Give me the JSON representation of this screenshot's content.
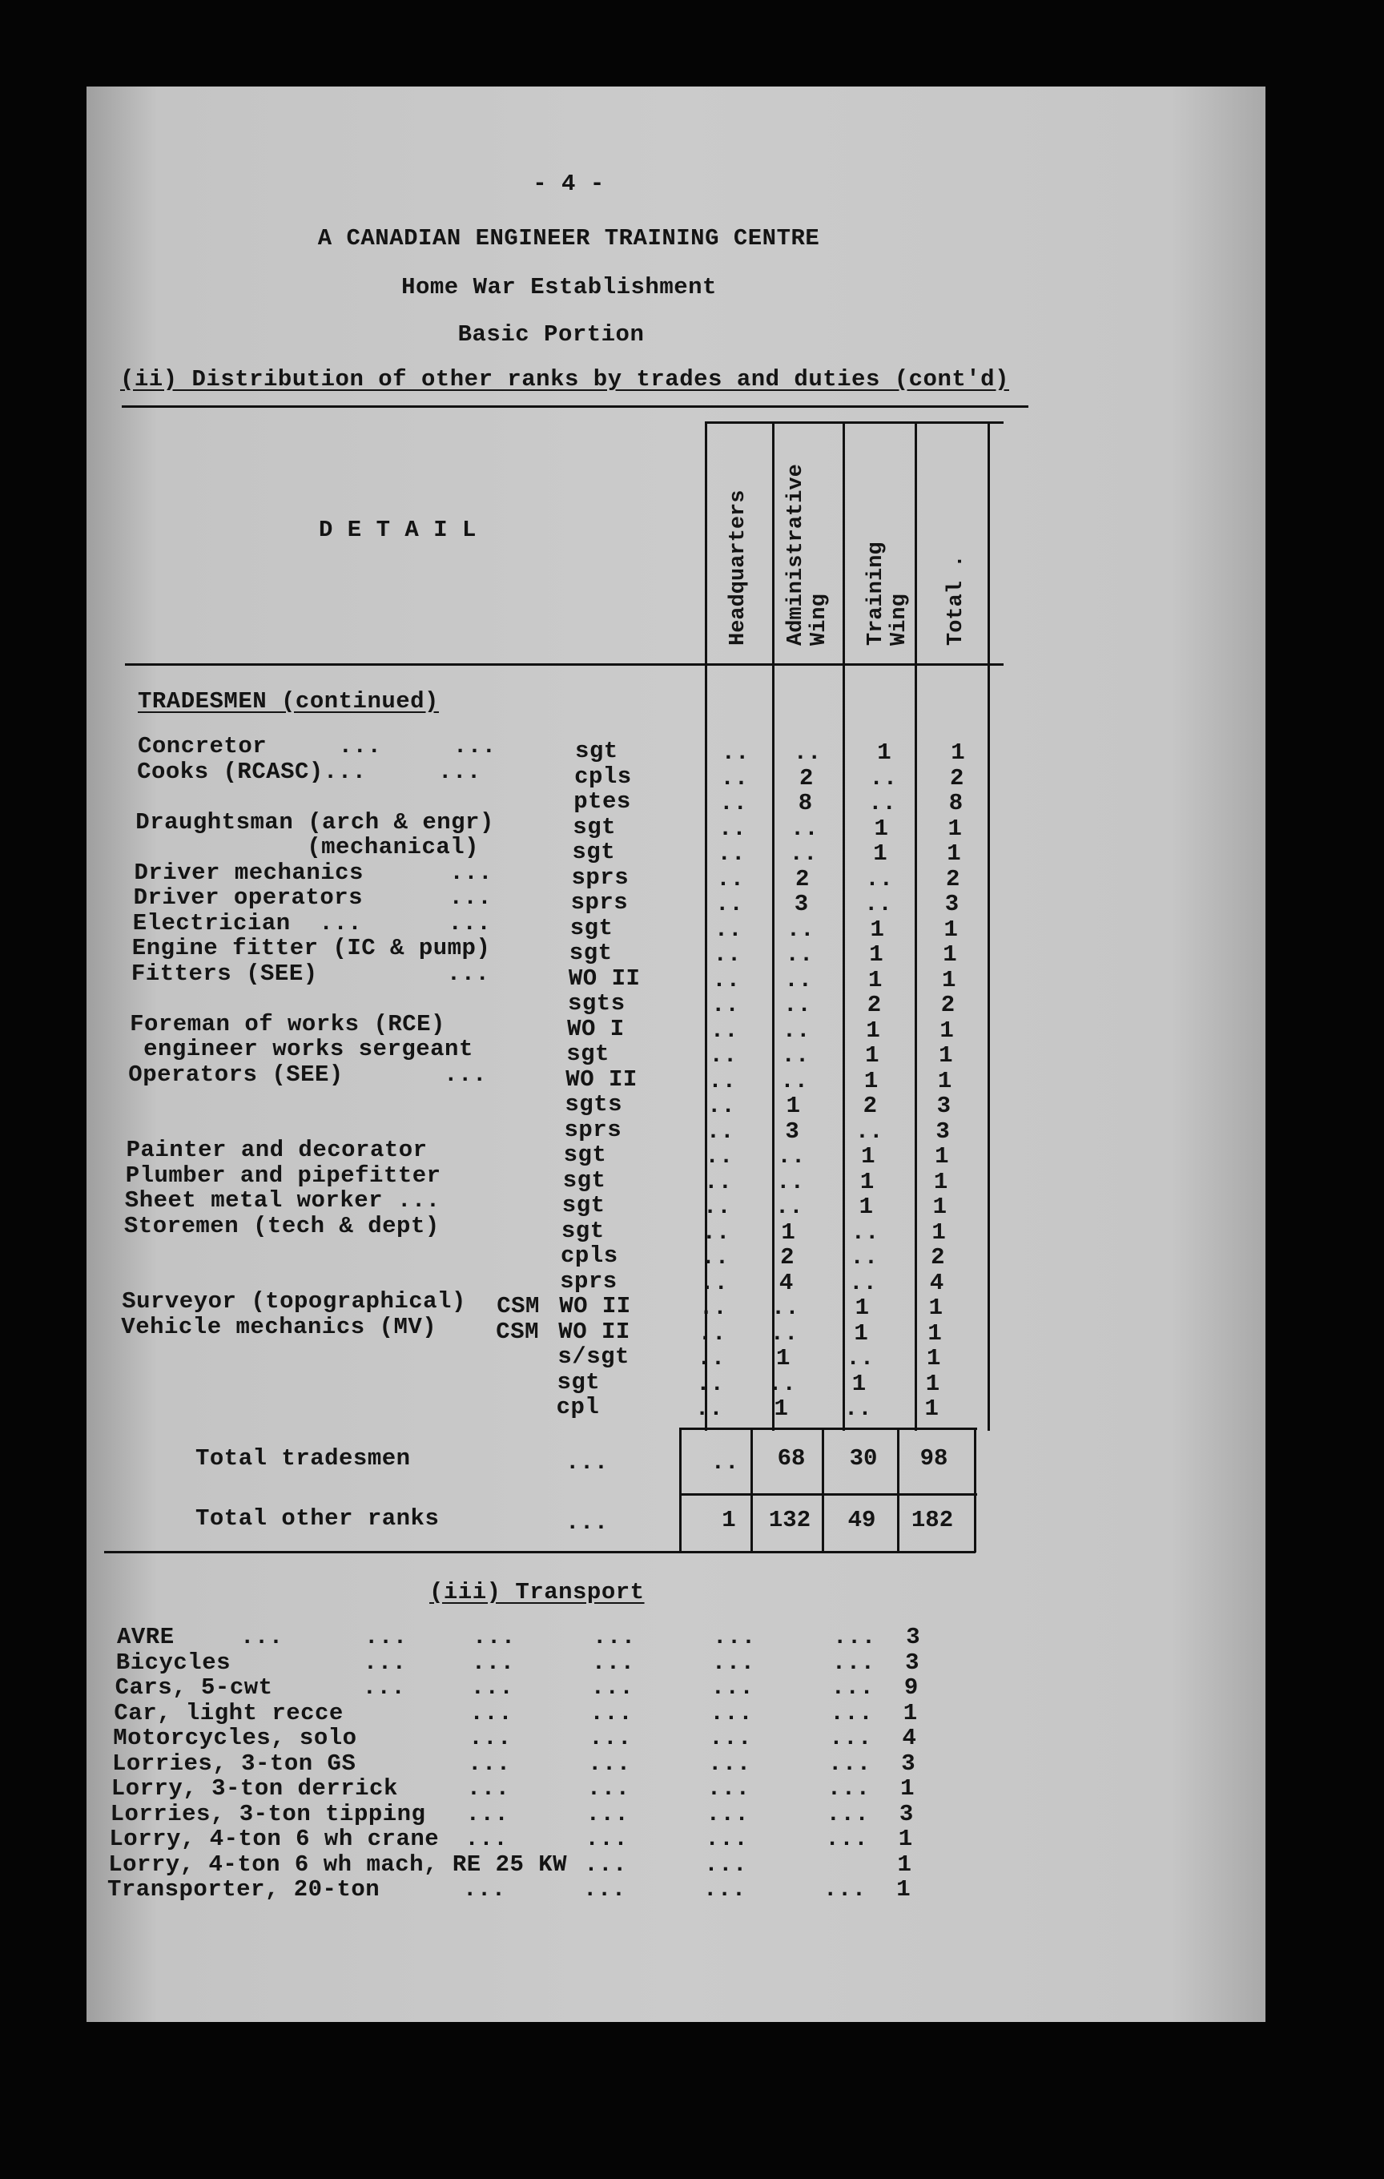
{
  "page_number": "- 4 -",
  "title": "A CANADIAN ENGINEER TRAINING CENTRE",
  "subtitle": "Home War Establishment",
  "portion": "Basic Portion",
  "section_ii": "(ii) Distribution of other ranks by trades and duties (cont'd)",
  "table": {
    "detail_header": "D E T A I L",
    "columns": [
      "Headquarters",
      "Administrative Wing",
      "Training Wing",
      "Total ."
    ],
    "group_heading": "TRADESMEN (continued)",
    "rows": [
      {
        "detail": "Concretor     ...     ...",
        "csm": "",
        "rank": "sgt",
        "hq": "..",
        "adm": "..",
        "trg": "1",
        "total": "1"
      },
      {
        "detail": "Cooks (RCASC)...     ...",
        "csm": "",
        "rank": "cpls",
        "hq": "..",
        "adm": "2",
        "trg": "..",
        "total": "2"
      },
      {
        "detail": "",
        "csm": "",
        "rank": "ptes",
        "hq": "..",
        "adm": "8",
        "trg": "..",
        "total": "8"
      },
      {
        "detail": "Draughtsman (arch & engr)",
        "csm": "",
        "rank": "sgt",
        "hq": "..",
        "adm": "..",
        "trg": "1",
        "total": "1"
      },
      {
        "detail": "            (mechanical)",
        "csm": "",
        "rank": "sgt",
        "hq": "..",
        "adm": "..",
        "trg": "1",
        "total": "1"
      },
      {
        "detail": "Driver mechanics      ...",
        "csm": "",
        "rank": "sprs",
        "hq": "..",
        "adm": "2",
        "trg": "..",
        "total": "2"
      },
      {
        "detail": "Driver operators      ...",
        "csm": "",
        "rank": "sprs",
        "hq": "..",
        "adm": "3",
        "trg": "..",
        "total": "3"
      },
      {
        "detail": "Electrician  ...      ...",
        "csm": "",
        "rank": "sgt",
        "hq": "..",
        "adm": "..",
        "trg": "1",
        "total": "1"
      },
      {
        "detail": "Engine fitter (IC & pump)",
        "csm": "",
        "rank": "sgt",
        "hq": "..",
        "adm": "..",
        "trg": "1",
        "total": "1"
      },
      {
        "detail": "Fitters (SEE)         ...",
        "csm": "",
        "rank": "WO II",
        "hq": "..",
        "adm": "..",
        "trg": "1",
        "total": "1"
      },
      {
        "detail": "",
        "csm": "",
        "rank": "sgts",
        "hq": "..",
        "adm": "..",
        "trg": "2",
        "total": "2"
      },
      {
        "detail": "Foreman of works (RCE)",
        "csm": "",
        "rank": "WO I",
        "hq": "..",
        "adm": "..",
        "trg": "1",
        "total": "1"
      },
      {
        "detail": " engineer works sergeant",
        "csm": "",
        "rank": "sgt",
        "hq": "..",
        "adm": "..",
        "trg": "1",
        "total": "1"
      },
      {
        "detail": "Operators (SEE)       ...",
        "csm": "",
        "rank": "WO II",
        "hq": "..",
        "adm": "..",
        "trg": "1",
        "total": "1"
      },
      {
        "detail": "",
        "csm": "",
        "rank": "sgts",
        "hq": "..",
        "adm": "1",
        "trg": "2",
        "total": "3"
      },
      {
        "detail": "",
        "csm": "",
        "rank": "sprs",
        "hq": "..",
        "adm": "3",
        "trg": "..",
        "total": "3"
      },
      {
        "detail": "Painter and decorator",
        "csm": "",
        "rank": "sgt",
        "hq": "..",
        "adm": "..",
        "trg": "1",
        "total": "1"
      },
      {
        "detail": "Plumber and pipefitter",
        "csm": "",
        "rank": "sgt",
        "hq": "..",
        "adm": "..",
        "trg": "1",
        "total": "1"
      },
      {
        "detail": "Sheet metal worker ...",
        "csm": "",
        "rank": "sgt",
        "hq": "..",
        "adm": "..",
        "trg": "1",
        "total": "1"
      },
      {
        "detail": "Storemen (tech & dept)",
        "csm": "",
        "rank": "sgt",
        "hq": "..",
        "adm": "1",
        "trg": "..",
        "total": "1"
      },
      {
        "detail": "",
        "csm": "",
        "rank": "cpls",
        "hq": "..",
        "adm": "2",
        "trg": "..",
        "total": "2"
      },
      {
        "detail": "",
        "csm": "",
        "rank": "sprs",
        "hq": "..",
        "adm": "4",
        "trg": "..",
        "total": "4"
      },
      {
        "detail": "Surveyor (topographical)",
        "csm": "CSM",
        "rank": "WO II",
        "hq": "..",
        "adm": "..",
        "trg": "1",
        "total": "1"
      },
      {
        "detail": "Vehicle mechanics (MV)",
        "csm": "CSM",
        "rank": "WO II",
        "hq": "..",
        "adm": "..",
        "trg": "1",
        "total": "1"
      },
      {
        "detail": "",
        "csm": "",
        "rank": "s/sgt",
        "hq": "..",
        "adm": "1",
        "trg": "..",
        "total": "1"
      },
      {
        "detail": "",
        "csm": "",
        "rank": "sgt",
        "hq": "..",
        "adm": "..",
        "trg": "1",
        "total": "1"
      },
      {
        "detail": "",
        "csm": "",
        "rank": "cpl",
        "hq": "..",
        "adm": "1",
        "trg": "..",
        "total": "1"
      }
    ],
    "total_tradesmen": {
      "label": "Total tradesmen",
      "dots": "...",
      "hq": "..",
      "adm": "68",
      "trg": "30",
      "total": "98"
    },
    "total_other_ranks": {
      "label": "Total other ranks",
      "dots": "...",
      "hq": "1",
      "adm": "132",
      "trg": "49",
      "total": "182"
    }
  },
  "section_iii": "(iii) Transport",
  "transport": [
    {
      "item": "AVRE",
      "dots": [
        "...",
        "...",
        "...",
        "...",
        "...",
        "..."
      ],
      "qty": "3"
    },
    {
      "item": "Bicycles",
      "dots": [
        "",
        "...",
        "...",
        "...",
        "...",
        "..."
      ],
      "qty": "3"
    },
    {
      "item": "Cars, 5-cwt",
      "dots": [
        "",
        "...",
        "...",
        "...",
        "...",
        "..."
      ],
      "qty": "9"
    },
    {
      "item": "Car, light recce",
      "dots": [
        "",
        "",
        "...",
        "...",
        "...",
        "..."
      ],
      "qty": "1"
    },
    {
      "item": "Motorcycles, solo",
      "dots": [
        "",
        "",
        "...",
        "...",
        "...",
        "..."
      ],
      "qty": "4"
    },
    {
      "item": "Lorries, 3-ton GS",
      "dots": [
        "",
        "",
        "...",
        "...",
        "...",
        "..."
      ],
      "qty": "3"
    },
    {
      "item": "Lorry, 3-ton derrick",
      "dots": [
        "",
        "",
        "...",
        "...",
        "...",
        "..."
      ],
      "qty": "1"
    },
    {
      "item": "Lorries, 3-ton tipping",
      "dots": [
        "",
        "",
        "...",
        "...",
        "...",
        "..."
      ],
      "qty": "3"
    },
    {
      "item": "Lorry, 4-ton 6 wh crane",
      "dots": [
        "",
        "",
        "...",
        "...",
        "...",
        "..."
      ],
      "qty": "1"
    },
    {
      "item": "Lorry, 4-ton 6 wh mach, RE 25 KW",
      "dots": [
        "",
        "",
        "",
        "...",
        "...",
        ""
      ],
      "qty": "1"
    },
    {
      "item": "Transporter, 20-ton",
      "dots": [
        "",
        "",
        "...",
        "...",
        "...",
        "..."
      ],
      "qty": "1"
    }
  ]
}
